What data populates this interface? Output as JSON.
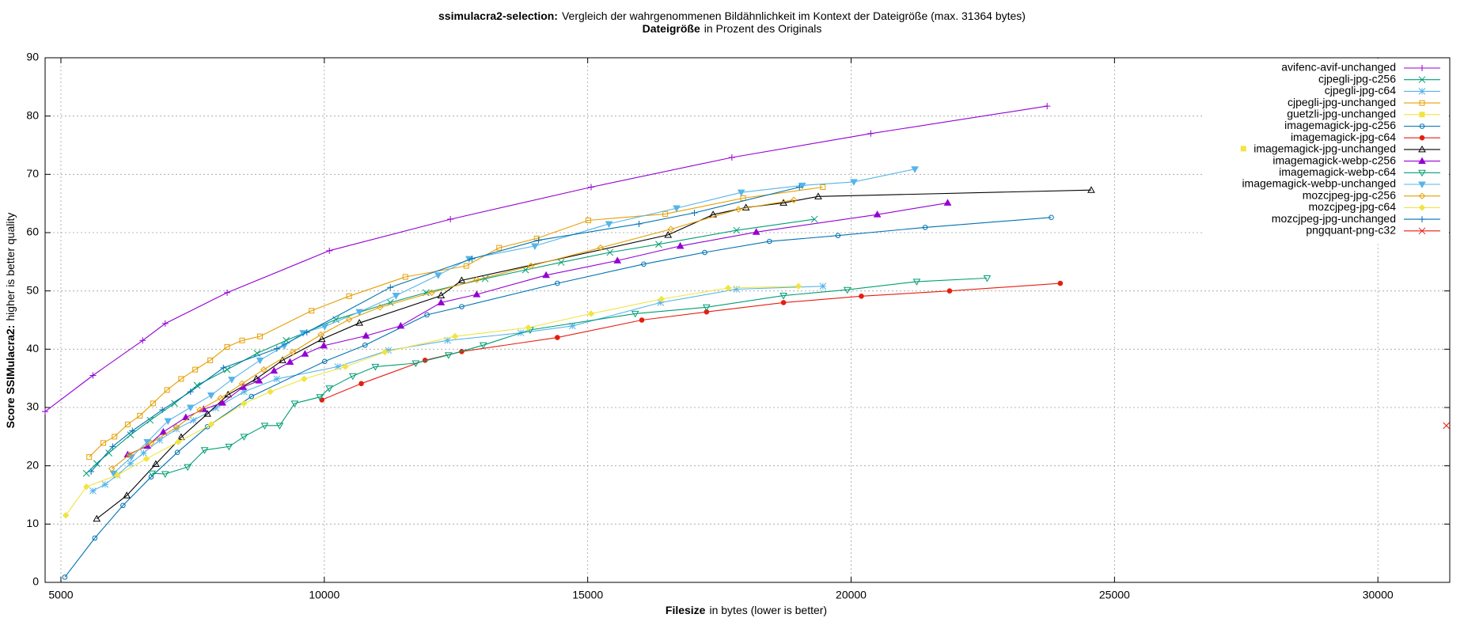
{
  "chart_data": {
    "type": "line",
    "title_bold": "ssimulacra2-selection:",
    "title": "Vergleich der wahrgenommenen Bildähnlichkeit im Kontext der Dateigröße (max. 31364 bytes)",
    "x2label_bold": "Dateigröße",
    "x2label": "in Prozent des Originals",
    "xlabel_bold": "Filesize",
    "xlabel": "in bytes (lower is better)",
    "ylabel_bold": "Score SSIMulacra2:",
    "ylabel": "higher is better quality",
    "xlim": [
      4700,
      31364
    ],
    "ylim": [
      0,
      90
    ],
    "xticks": [
      5000,
      10000,
      15000,
      20000,
      25000,
      30000
    ],
    "yticks": [
      0,
      10,
      20,
      30,
      40,
      50,
      60,
      70,
      80,
      90
    ],
    "grid": true,
    "legend": "top-right",
    "series": [
      {
        "name": "avifenc-avif-unchanged",
        "color": "#9400d3",
        "marker": "plus",
        "x": [
          4700,
          5608,
          6552,
          6980,
          8155,
          10096,
          12394,
          15065,
          17737,
          20373,
          23721
        ],
        "values": [
          29.3,
          35.5,
          41.5,
          44.4,
          49.7,
          56.9,
          62.3,
          67.8,
          72.9,
          77.0,
          81.7
        ]
      },
      {
        "name": "cjpegli-jpg-c256",
        "color": "#009e73",
        "marker": "cross",
        "x": [
          5484,
          5680,
          5911,
          6321,
          6695,
          7158,
          7585,
          8155,
          8725,
          9277,
          10221,
          11254,
          11931,
          13053,
          13819,
          14496,
          15422,
          16348,
          17826,
          19304
        ],
        "values": [
          18.7,
          20.4,
          22.2,
          25.3,
          27.8,
          30.7,
          33.8,
          36.5,
          39.3,
          41.5,
          45.1,
          48.0,
          49.7,
          52.1,
          53.6,
          54.9,
          56.6,
          58.0,
          60.4,
          62.3
        ]
      },
      {
        "name": "cjpegli-jpg-c64",
        "color": "#56b4e9",
        "marker": "star",
        "x": [
          5608,
          5840,
          6071,
          6321,
          6570,
          6873,
          7193,
          7514,
          7941,
          8476,
          9099,
          10257,
          11218,
          12340,
          13730,
          14709,
          16383,
          17826,
          19464
        ],
        "values": [
          15.7,
          16.8,
          18.4,
          20.4,
          22.2,
          24.4,
          26.3,
          27.8,
          29.9,
          32.7,
          34.9,
          37.0,
          39.8,
          41.5,
          42.8,
          44.0,
          48.0,
          50.3,
          50.8
        ]
      },
      {
        "name": "cjpegli-jpg-unchanged",
        "color": "#e69f00",
        "marker": "square",
        "x": [
          5537,
          5804,
          6018,
          6267,
          6499,
          6748,
          7015,
          7282,
          7549,
          7835,
          8155,
          8440,
          8779,
          9758,
          10470,
          11539,
          12696,
          13319,
          14032,
          15011,
          16472,
          17950,
          19464
        ],
        "values": [
          21.5,
          23.9,
          25.0,
          27.1,
          28.6,
          30.7,
          33.0,
          34.9,
          36.5,
          38.1,
          40.4,
          41.5,
          42.2,
          46.6,
          49.1,
          52.4,
          54.3,
          57.4,
          59.0,
          62.1,
          63.2,
          65.9,
          67.8
        ]
      },
      {
        "name": "guetzli-jpg-unchanged",
        "color": "#f0e442",
        "marker": "square-filled",
        "x": [
          27447
        ],
        "values": [
          74.4
        ]
      },
      {
        "name": "imagemagick-jpg-c256",
        "color": "#0072b2",
        "marker": "circle",
        "x": [
          5074,
          5644,
          6178,
          6713,
          7211,
          7781,
          8618,
          10007,
          10773,
          11949,
          12608,
          14424,
          16063,
          17221,
          18450,
          19750,
          21406,
          23800
        ],
        "values": [
          0.9,
          7.6,
          13.2,
          18.1,
          22.3,
          26.7,
          31.9,
          37.9,
          40.7,
          45.9,
          47.3,
          51.3,
          54.6,
          56.6,
          58.5,
          59.5,
          60.9,
          62.6
        ]
      },
      {
        "name": "imagemagick-jpg-c64",
        "color": "#e51e10",
        "marker": "circle-filled",
        "x": [
          9954,
          10702,
          11913,
          12608,
          14424,
          16027,
          17256,
          18717,
          20195,
          21869,
          23971
        ],
        "values": [
          31.3,
          34.1,
          38.1,
          39.6,
          42.0,
          45.0,
          46.4,
          48.0,
          49.1,
          50.0,
          51.3
        ]
      },
      {
        "name": "imagemagick-jpg-unchanged",
        "color": "#000000",
        "marker": "triangle",
        "x": [
          5680,
          6250,
          6802,
          7282,
          7781,
          8173,
          8708,
          9206,
          9954,
          10666,
          12216,
          12608,
          16526,
          17381,
          18004,
          18717,
          19376,
          24558
        ],
        "values": [
          10.9,
          14.9,
          20.3,
          24.9,
          28.9,
          32.2,
          34.9,
          38.1,
          41.7,
          44.5,
          49.2,
          51.8,
          59.6,
          63.1,
          64.3,
          65.1,
          66.2,
          67.3
        ]
      },
      {
        "name": "imagemagick-webp-c256",
        "color": "#9400d3",
        "marker": "triangle-filled",
        "x": [
          6267,
          6641,
          6944,
          7371,
          7710,
          8066,
          8458,
          8761,
          9046,
          9349,
          9634,
          9990,
          10791,
          11450,
          12216,
          12893,
          14211,
          15564,
          16757,
          18200,
          20497,
          21833
        ],
        "values": [
          21.9,
          23.4,
          25.8,
          28.3,
          29.7,
          30.8,
          33.5,
          34.6,
          36.3,
          37.8,
          39.2,
          40.6,
          42.3,
          44.0,
          48.0,
          49.4,
          52.7,
          55.2,
          57.7,
          60.1,
          63.1,
          65.1
        ]
      },
      {
        "name": "imagemagick-webp-c64",
        "color": "#009e73",
        "marker": "triangle-down",
        "x": [
          6730,
          6980,
          7407,
          7728,
          8191,
          8476,
          8868,
          9153,
          9438,
          9918,
          10096,
          10541,
          10969,
          11735,
          12358,
          13017,
          13907,
          15902,
          17256,
          18717,
          19928,
          21246,
          22582
        ],
        "values": [
          18.7,
          18.6,
          19.8,
          22.7,
          23.3,
          25.0,
          26.9,
          26.9,
          30.7,
          31.8,
          33.3,
          35.4,
          37.0,
          37.6,
          39.0,
          40.7,
          43.3,
          46.1,
          47.2,
          49.2,
          50.2,
          51.6,
          52.2
        ]
      },
      {
        "name": "imagemagick-webp-unchanged",
        "color": "#56b4e9",
        "marker": "triangle-down-filled",
        "x": [
          5999,
          6338,
          6641,
          7033,
          7460,
          7852,
          8244,
          8779,
          9242,
          9598,
          10007,
          10666,
          11361,
          12162,
          12750,
          13997,
          15404,
          16687,
          17915,
          19073,
          20052,
          21210
        ],
        "values": [
          18.7,
          21.5,
          24.1,
          27.7,
          30.0,
          32.1,
          34.8,
          38.1,
          40.6,
          42.8,
          43.9,
          46.4,
          49.2,
          52.7,
          55.5,
          57.7,
          61.5,
          64.2,
          66.9,
          68.1,
          68.7,
          70.9
        ]
      },
      {
        "name": "mozcjpeg-jpg-c256",
        "color": "#e69f00",
        "marker": "diamond",
        "x": [
          5964,
          6303,
          6713,
          7193,
          7638,
          8030,
          8440,
          8850,
          9402,
          9936,
          10470,
          11058,
          12038,
          12893,
          13925,
          15243,
          16579,
          17861,
          18912
        ],
        "values": [
          19.5,
          21.9,
          23.9,
          26.6,
          29.6,
          31.6,
          34.1,
          36.5,
          39.5,
          42.5,
          45.1,
          47.2,
          49.7,
          51.9,
          54.3,
          57.4,
          60.6,
          64.0,
          65.6
        ]
      },
      {
        "name": "mozcjpeg-jpg-c64",
        "color": "#f0e442",
        "marker": "diamond-filled",
        "x": [
          5092,
          5484,
          6071,
          6623,
          7229,
          7852,
          8476,
          8975,
          9616,
          10399,
          11147,
          12483,
          13872,
          15065,
          16401,
          17666,
          19001
        ],
        "values": [
          11.5,
          16.4,
          18.4,
          21.2,
          24.1,
          27.1,
          30.7,
          32.7,
          34.9,
          37.0,
          39.5,
          42.2,
          43.7,
          46.1,
          48.6,
          50.5,
          50.8
        ]
      },
      {
        "name": "mozcjpeg-jpg-unchanged",
        "color": "#0072b2",
        "marker": "plus",
        "x": [
          5573,
          5982,
          6356,
          6926,
          7460,
          8084,
          9099,
          9669,
          11254,
          12803,
          14068,
          15974,
          17025,
          19020
        ],
        "values": [
          19.0,
          23.3,
          26.0,
          29.6,
          32.7,
          36.8,
          40.1,
          42.9,
          50.6,
          55.5,
          58.7,
          61.5,
          63.4,
          67.8
        ]
      },
      {
        "name": "pngquant-png-c32",
        "color": "#e51e10",
        "marker": "cross",
        "x": [
          31300
        ],
        "values": [
          26.9
        ]
      }
    ]
  }
}
